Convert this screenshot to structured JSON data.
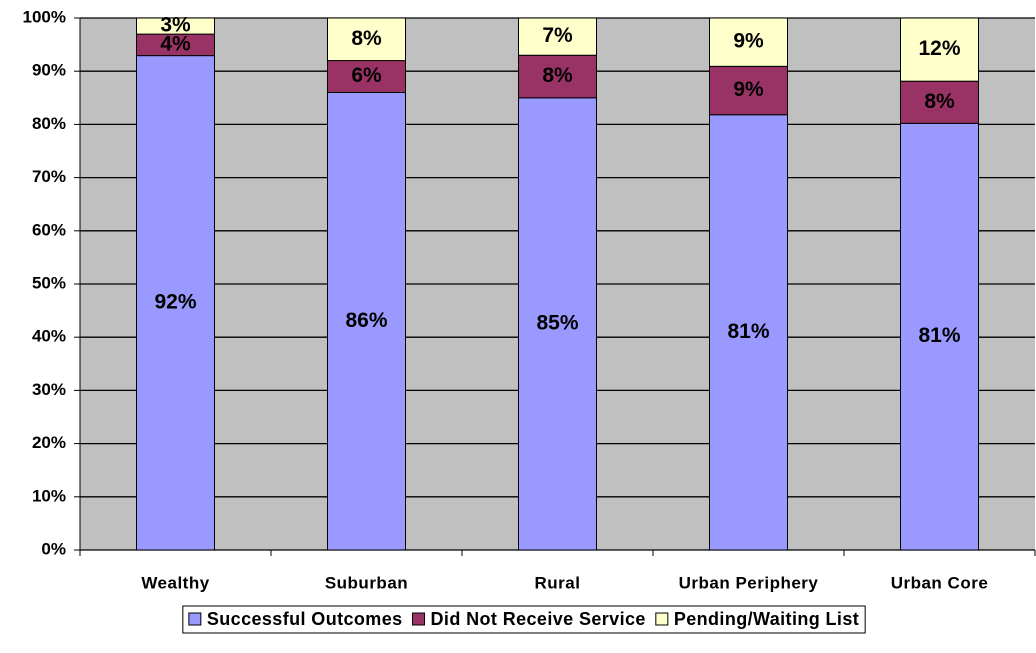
{
  "chart_data": {
    "type": "bar",
    "stacking": "percent",
    "categories": [
      "Wealthy",
      "Suburban",
      "Rural",
      "Urban Periphery",
      "Urban Core"
    ],
    "series": [
      {
        "name": "Successful Outcomes",
        "color": "#9999ff",
        "values": [
          92,
          86,
          85,
          81,
          81
        ],
        "value_labels": [
          "92%",
          "86%",
          "85%",
          "81%",
          "81%"
        ]
      },
      {
        "name": "Did Not Receive Service",
        "color": "#993366",
        "values": [
          4,
          6,
          8,
          9,
          8
        ],
        "value_labels": [
          "4%",
          "6%",
          "8%",
          "9%",
          "8%"
        ]
      },
      {
        "name": "Pending/Waiting List",
        "color": "#ffffcc",
        "values": [
          3,
          8,
          7,
          9,
          12
        ],
        "value_labels": [
          "3%",
          "8%",
          "7%",
          "9%",
          "12%"
        ]
      }
    ],
    "ylim": [
      0,
      100
    ],
    "yticks": [
      {
        "value": 0,
        "label": "0%"
      },
      {
        "value": 10,
        "label": "10%"
      },
      {
        "value": 20,
        "label": "20%"
      },
      {
        "value": 30,
        "label": "30%"
      },
      {
        "value": 40,
        "label": "40%"
      },
      {
        "value": 50,
        "label": "50%"
      },
      {
        "value": 60,
        "label": "60%"
      },
      {
        "value": 70,
        "label": "70%"
      },
      {
        "value": 80,
        "label": "80%"
      },
      {
        "value": 90,
        "label": "90%"
      },
      {
        "value": 100,
        "label": "100%"
      }
    ],
    "grid": true,
    "background": "#c0c0c0",
    "legend": "bottom"
  }
}
